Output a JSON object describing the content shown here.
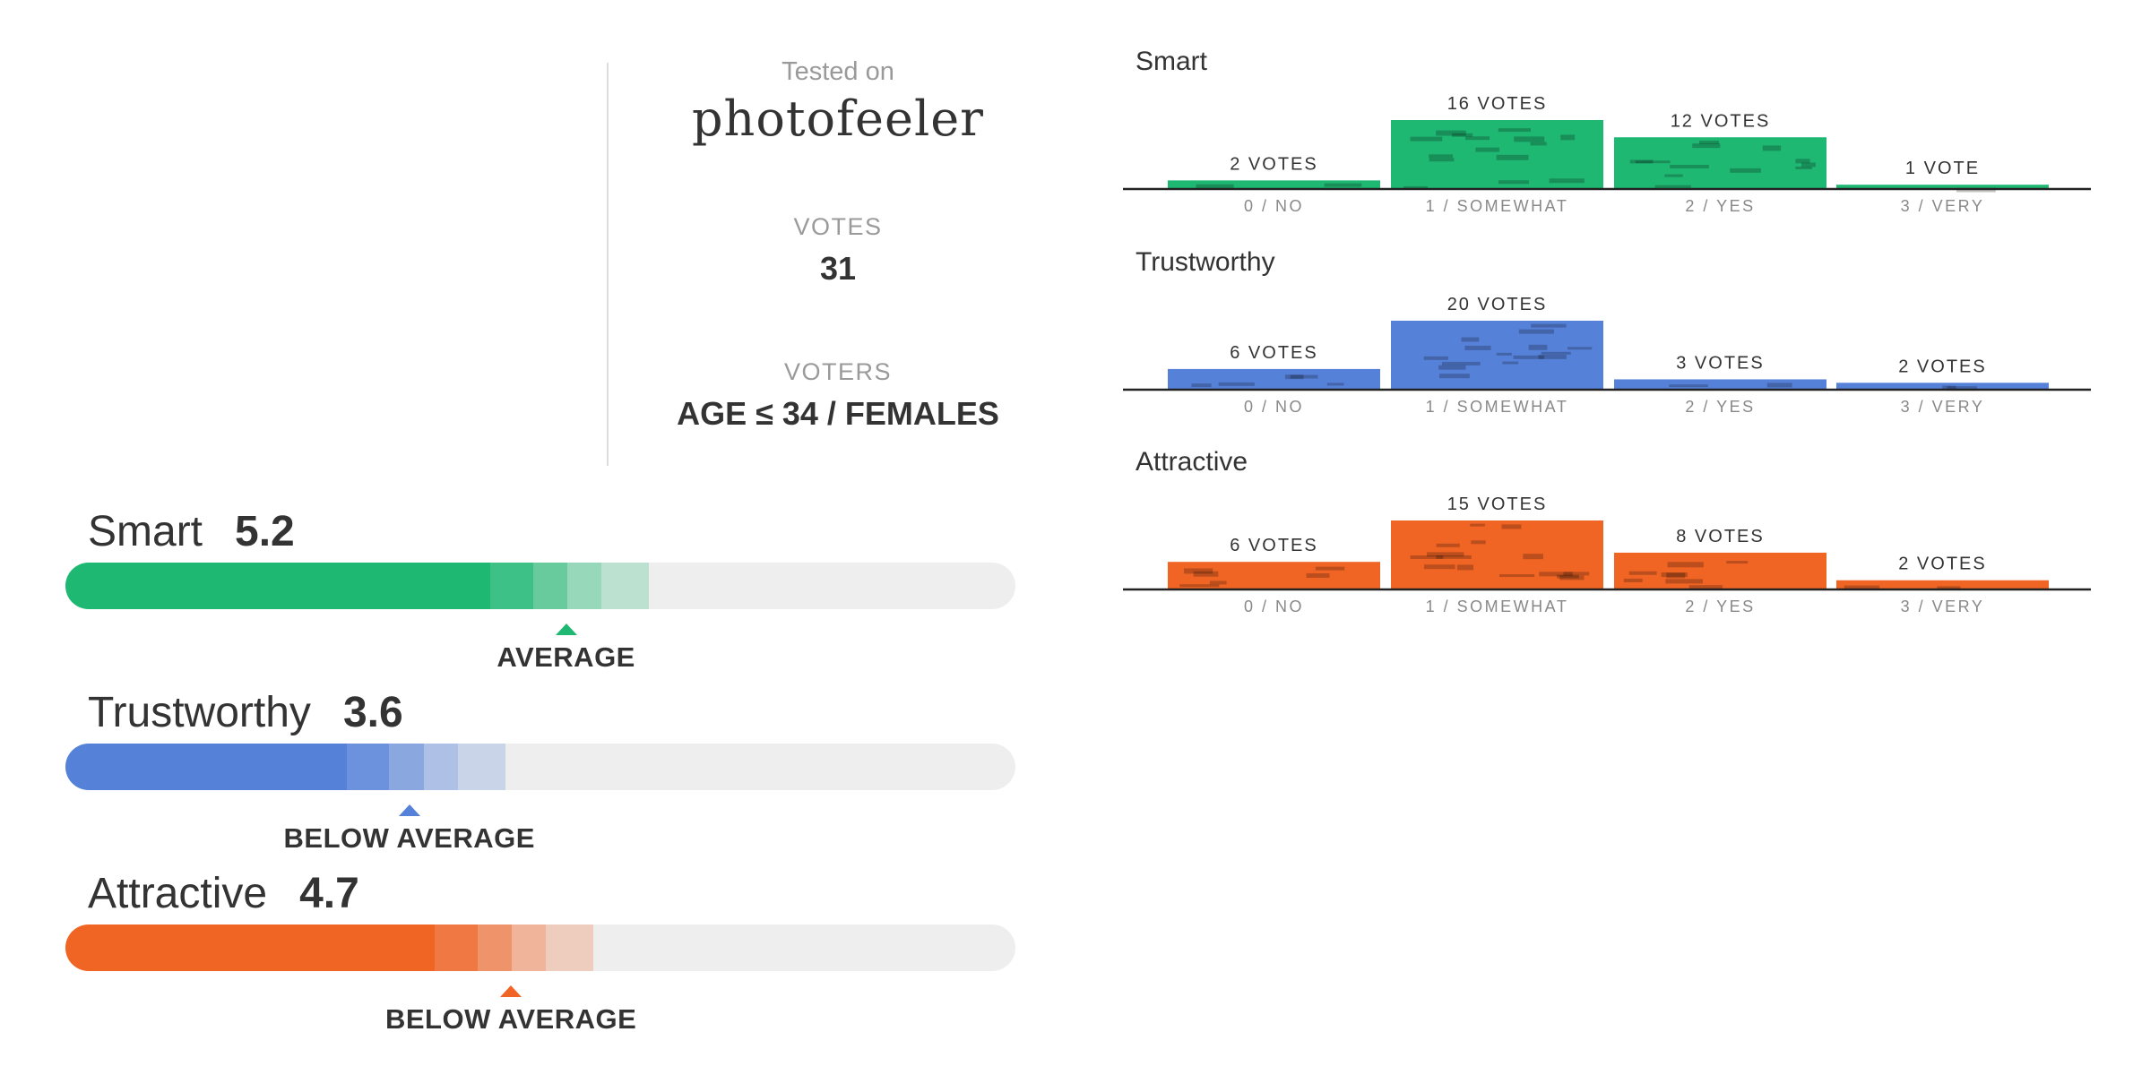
{
  "header": {
    "tested_on_label": "Tested on",
    "brand": "photofeeler",
    "votes_label": "VOTES",
    "votes_value": "31",
    "voters_label": "VOTERS",
    "voters_value": "AGE ≤ 34 / FEMALES"
  },
  "scores": [
    {
      "name": "Smart",
      "score": "5.2",
      "verdict": "AVERAGE",
      "color": "#1fb873",
      "fill_fraction": 0.447,
      "marker_fraction": 0.527
    },
    {
      "name": "Trustworthy",
      "score": "3.6",
      "verdict": "BELOW AVERAGE",
      "color": "#5681d9",
      "fill_fraction": 0.296,
      "marker_fraction": 0.362
    },
    {
      "name": "Attractive",
      "score": "4.7",
      "verdict": "BELOW AVERAGE",
      "color": "#f06424",
      "fill_fraction": 0.389,
      "marker_fraction": 0.469
    }
  ],
  "chart_data": [
    {
      "type": "bar",
      "title": "Smart",
      "categories": [
        "0 / NO",
        "1 / SOMEWHAT",
        "2 / YES",
        "3 / VERY"
      ],
      "values": [
        2,
        16,
        12,
        1
      ],
      "data_labels": [
        "2 VOTES",
        "16 VOTES",
        "12 VOTES",
        "1 VOTE"
      ],
      "color": "#1fb873",
      "ylim": [
        0,
        16
      ]
    },
    {
      "type": "bar",
      "title": "Trustworthy",
      "categories": [
        "0 / NO",
        "1 / SOMEWHAT",
        "2 / YES",
        "3 / VERY"
      ],
      "values": [
        6,
        20,
        3,
        2
      ],
      "data_labels": [
        "6 VOTES",
        "20 VOTES",
        "3 VOTES",
        "2 VOTES"
      ],
      "color": "#5681d9",
      "ylim": [
        0,
        20
      ]
    },
    {
      "type": "bar",
      "title": "Attractive",
      "categories": [
        "0 / NO",
        "1 / SOMEWHAT",
        "2 / YES",
        "3 / VERY"
      ],
      "values": [
        6,
        15,
        8,
        2
      ],
      "data_labels": [
        "6 VOTES",
        "15 VOTES",
        "8 VOTES",
        "2 VOTES"
      ],
      "color": "#f06424",
      "ylim": [
        0,
        15
      ]
    }
  ]
}
